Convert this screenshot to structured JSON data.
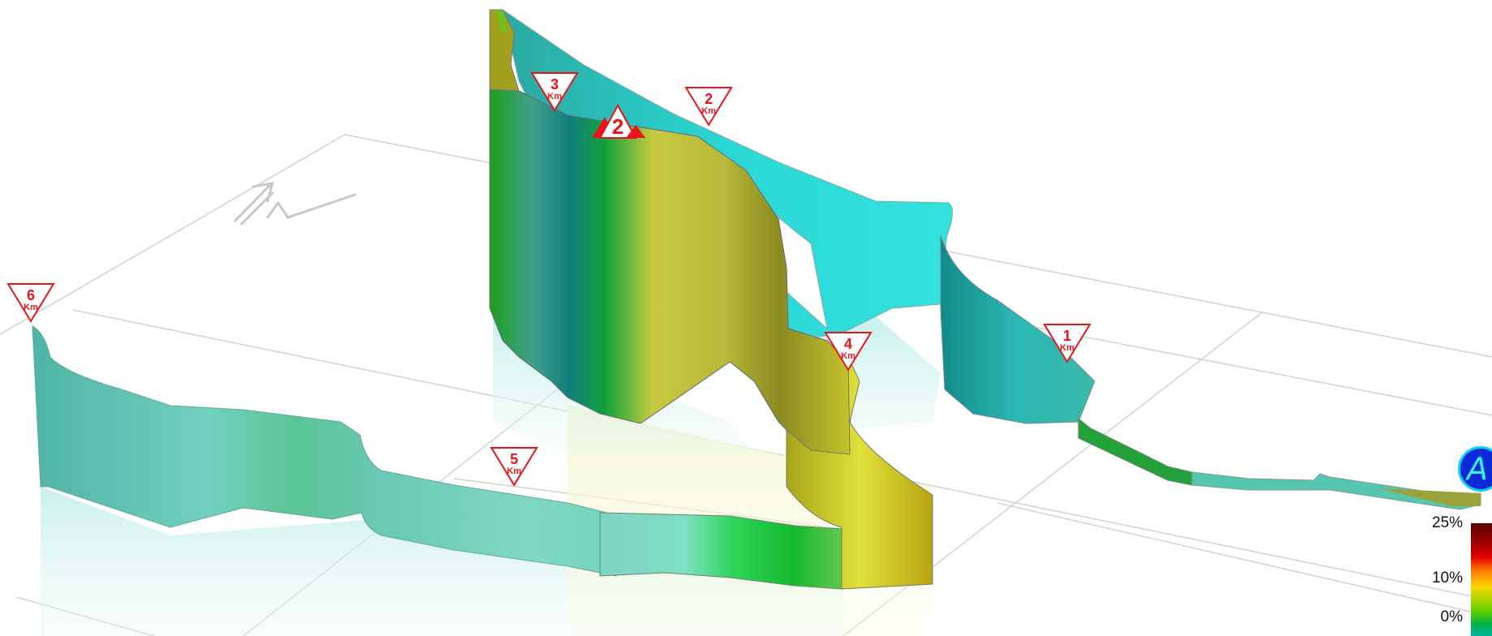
{
  "markers": [
    {
      "id": "km-6",
      "number": "6",
      "unit": "Km"
    },
    {
      "id": "km-5",
      "number": "5",
      "unit": "Km"
    },
    {
      "id": "km-4",
      "number": "4",
      "unit": "Km"
    },
    {
      "id": "km-3",
      "number": "3",
      "unit": "Km"
    },
    {
      "id": "km-2",
      "number": "2",
      "unit": "Km"
    },
    {
      "id": "km-1",
      "number": "1",
      "unit": "Km"
    }
  ],
  "climb_marker": {
    "number": "2"
  },
  "start_badge": {
    "label": "A"
  },
  "compass": {
    "label": "N"
  },
  "legend": {
    "max_label": "25%",
    "mid_label": "10%",
    "min_label": "0%",
    "colors": [
      "#5a0000",
      "#e00000",
      "#ff7a00",
      "#ffd400",
      "#5fd000",
      "#00b899"
    ]
  }
}
